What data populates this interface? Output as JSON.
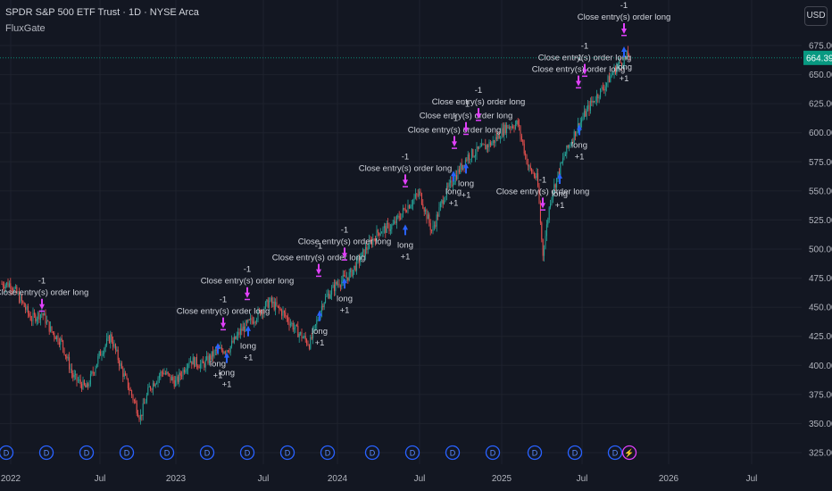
{
  "header": {
    "symbol_line": "SPDR S&P 500 ETF Trust · 1D · NYSE Arca",
    "indicator": "FluxGate",
    "currency_button": "USD"
  },
  "colors": {
    "background": "#131722",
    "grid": "#1e222d",
    "up": "#26a69a",
    "down": "#ef5350",
    "long_arrow": "#2962ff",
    "close_arrow": "#e040fb",
    "price_line": "#089981",
    "text": "#d1d4dc",
    "axis_text": "#b2b5be"
  },
  "chart_data": {
    "type": "candlestick",
    "y_ticks": [
      "675.00",
      "650.00",
      "625.00",
      "600.00",
      "575.00",
      "550.00",
      "525.00",
      "500.00",
      "475.00",
      "450.00",
      "425.00",
      "400.00",
      "375.00",
      "350.00",
      "325.00"
    ],
    "ylim": [
      325,
      695
    ],
    "x_labels": [
      "2022",
      "Jul",
      "2023",
      "Jul",
      "2024",
      "Jul",
      "2025",
      "Jul",
      "2026",
      "Jul"
    ],
    "last_price": "664.39",
    "price_path": [
      {
        "t": 0,
        "p": 470
      },
      {
        "t": 10,
        "p": 470
      },
      {
        "t": 22,
        "p": 455
      },
      {
        "t": 33,
        "p": 440
      },
      {
        "t": 45,
        "p": 445
      },
      {
        "t": 55,
        "p": 430
      },
      {
        "t": 67,
        "p": 420
      },
      {
        "t": 80,
        "p": 390
      },
      {
        "t": 95,
        "p": 380
      },
      {
        "t": 110,
        "p": 410
      },
      {
        "t": 122,
        "p": 425
      },
      {
        "t": 135,
        "p": 395
      },
      {
        "t": 148,
        "p": 370
      },
      {
        "t": 155,
        "p": 355
      },
      {
        "t": 165,
        "p": 380
      },
      {
        "t": 180,
        "p": 395
      },
      {
        "t": 195,
        "p": 385
      },
      {
        "t": 210,
        "p": 405
      },
      {
        "t": 225,
        "p": 400
      },
      {
        "t": 240,
        "p": 412
      },
      {
        "t": 255,
        "p": 415
      },
      {
        "t": 268,
        "p": 430
      },
      {
        "t": 282,
        "p": 440
      },
      {
        "t": 300,
        "p": 455
      },
      {
        "t": 315,
        "p": 445
      },
      {
        "t": 330,
        "p": 430
      },
      {
        "t": 345,
        "p": 418
      },
      {
        "t": 360,
        "p": 455
      },
      {
        "t": 375,
        "p": 470
      },
      {
        "t": 390,
        "p": 478
      },
      {
        "t": 408,
        "p": 500
      },
      {
        "t": 422,
        "p": 515
      },
      {
        "t": 438,
        "p": 520
      },
      {
        "t": 452,
        "p": 535
      },
      {
        "t": 468,
        "p": 548
      },
      {
        "t": 482,
        "p": 515
      },
      {
        "t": 495,
        "p": 545
      },
      {
        "t": 510,
        "p": 565
      },
      {
        "t": 522,
        "p": 580
      },
      {
        "t": 535,
        "p": 585
      },
      {
        "t": 550,
        "p": 592
      },
      {
        "t": 565,
        "p": 605
      },
      {
        "t": 578,
        "p": 608
      },
      {
        "t": 590,
        "p": 570
      },
      {
        "t": 600,
        "p": 560
      },
      {
        "t": 606,
        "p": 495
      },
      {
        "t": 615,
        "p": 545
      },
      {
        "t": 630,
        "p": 580
      },
      {
        "t": 645,
        "p": 605
      },
      {
        "t": 660,
        "p": 625
      },
      {
        "t": 675,
        "p": 640
      },
      {
        "t": 690,
        "p": 658
      },
      {
        "t": 703,
        "p": 668
      }
    ],
    "signals": [
      {
        "kind": "close",
        "t": 45,
        "p": 448,
        "label": "Close entry(s) order long",
        "qty": "-1"
      },
      {
        "kind": "long",
        "t": 242,
        "p": 410,
        "label": "long",
        "qty": "+1"
      },
      {
        "kind": "long",
        "t": 252,
        "p": 402,
        "label": "long",
        "qty": "+1"
      },
      {
        "kind": "close",
        "t": 248,
        "p": 432,
        "label": "Close entry(s) order long",
        "qty": "-1"
      },
      {
        "kind": "close",
        "t": 275,
        "p": 458,
        "label": "Close entry(s) order long",
        "qty": "-1"
      },
      {
        "kind": "long",
        "t": 276,
        "p": 425,
        "label": "long",
        "qty": "+1"
      },
      {
        "kind": "long",
        "t": 356,
        "p": 438,
        "label": "long",
        "qty": "+1"
      },
      {
        "kind": "close",
        "t": 355,
        "p": 478,
        "label": "Close entry(s) order long",
        "qty": "-1"
      },
      {
        "kind": "long",
        "t": 384,
        "p": 466,
        "label": "long",
        "qty": "+1"
      },
      {
        "kind": "close",
        "t": 384,
        "p": 492,
        "label": "Close entry(s) order long",
        "qty": "-1"
      },
      {
        "kind": "long",
        "t": 452,
        "p": 512,
        "label": "long",
        "qty": "+1"
      },
      {
        "kind": "close",
        "t": 452,
        "p": 555,
        "label": "Close entry(s) order long",
        "qty": "-1"
      },
      {
        "kind": "long",
        "t": 506,
        "p": 558,
        "label": "long",
        "qty": "+1"
      },
      {
        "kind": "long",
        "t": 520,
        "p": 565,
        "label": "long",
        "qty": "+1"
      },
      {
        "kind": "close",
        "t": 507,
        "p": 588,
        "label": "Close entry(s) order long",
        "qty": "-1"
      },
      {
        "kind": "close",
        "t": 520,
        "p": 600,
        "label": "Close entry(s) order long",
        "qty": "-1"
      },
      {
        "kind": "close",
        "t": 534,
        "p": 612,
        "label": "Close entry(s) order long",
        "qty": "-1"
      },
      {
        "kind": "close",
        "t": 606,
        "p": 535,
        "label": "Close entry(s) order long",
        "qty": "-1"
      },
      {
        "kind": "long",
        "t": 625,
        "p": 556,
        "label": "long",
        "qty": "+1"
      },
      {
        "kind": "long",
        "t": 647,
        "p": 598,
        "label": "long",
        "qty": "+1"
      },
      {
        "kind": "close",
        "t": 653,
        "p": 650,
        "label": "Close entry(s) order long",
        "qty": "-1"
      },
      {
        "kind": "close",
        "t": 646,
        "p": 640,
        "label": "Close entry(s) order long",
        "qty": "-1"
      },
      {
        "kind": "long",
        "t": 697,
        "p": 665,
        "label": "long",
        "qty": "+1"
      },
      {
        "kind": "close",
        "t": 697,
        "p": 685,
        "label": "Close entry(s) order long",
        "qty": "-1"
      }
    ],
    "events": [
      {
        "t": 5,
        "sym": "D"
      },
      {
        "t": 50,
        "sym": "D"
      },
      {
        "t": 95,
        "sym": "D"
      },
      {
        "t": 140,
        "sym": "D"
      },
      {
        "t": 185,
        "sym": "D"
      },
      {
        "t": 230,
        "sym": "D"
      },
      {
        "t": 275,
        "sym": "D"
      },
      {
        "t": 320,
        "sym": "D"
      },
      {
        "t": 365,
        "sym": "D"
      },
      {
        "t": 415,
        "sym": "D"
      },
      {
        "t": 460,
        "sym": "D"
      },
      {
        "t": 505,
        "sym": "D"
      },
      {
        "t": 550,
        "sym": "D"
      },
      {
        "t": 597,
        "sym": "D"
      },
      {
        "t": 642,
        "sym": "D"
      },
      {
        "t": 687,
        "sym": "D"
      },
      {
        "t": 703,
        "sym": "⚡"
      }
    ]
  }
}
